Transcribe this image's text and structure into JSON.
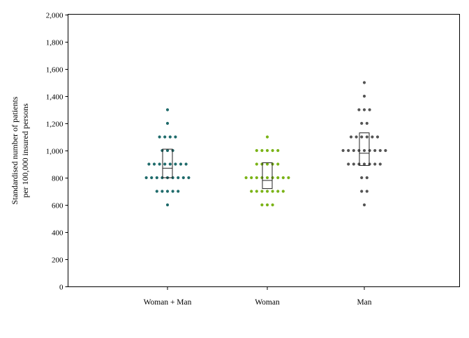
{
  "chart_data": {
    "type": "scatter",
    "title": "",
    "xlabel": "",
    "ylabel_lines": [
      "Standardised number of patients",
      "per 100,000 insured persons"
    ],
    "ylim": [
      0,
      2000
    ],
    "yticks": [
      0,
      200,
      400,
      600,
      800,
      1000,
      1200,
      1400,
      1600,
      1800,
      2000
    ],
    "ytick_labels": [
      "0",
      "200",
      "400",
      "600",
      "800",
      "1,000",
      "1,200",
      "1,400",
      "1,600",
      "1,800",
      "2,000"
    ],
    "grid": false,
    "categories": [
      "Woman + Man",
      "Woman",
      "Man"
    ],
    "series": [
      {
        "color": "#1f6b6b",
        "values": [
          600,
          700,
          700,
          700,
          700,
          700,
          800,
          800,
          800,
          800,
          800,
          800,
          800,
          800,
          800,
          900,
          900,
          900,
          900,
          900,
          900,
          900,
          900,
          1000,
          1000,
          1000,
          1100,
          1100,
          1100,
          1100,
          1200,
          1300
        ],
        "box": {
          "q1": 800,
          "median": 870,
          "q3": 1010
        }
      },
      {
        "color": "#7ab317",
        "values": [
          600,
          600,
          600,
          700,
          700,
          700,
          700,
          700,
          700,
          700,
          800,
          800,
          800,
          800,
          800,
          800,
          800,
          800,
          800,
          900,
          900,
          900,
          900,
          900,
          1000,
          1000,
          1000,
          1000,
          1000,
          1100
        ],
        "box": {
          "q1": 720,
          "median": 780,
          "q3": 910
        }
      },
      {
        "color": "#555555",
        "values": [
          600,
          700,
          700,
          800,
          800,
          900,
          900,
          900,
          900,
          900,
          900,
          900,
          1000,
          1000,
          1000,
          1000,
          1000,
          1000,
          1000,
          1000,
          1000,
          1100,
          1100,
          1100,
          1100,
          1100,
          1100,
          1200,
          1200,
          1300,
          1300,
          1300,
          1400,
          1500
        ],
        "box": {
          "q1": 890,
          "median": 980,
          "q3": 1130
        }
      }
    ]
  }
}
